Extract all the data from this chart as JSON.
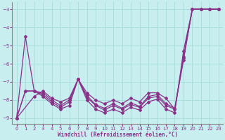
{
  "xlabel": "Windchill (Refroidissement éolien,°C)",
  "bg_color": "#c8eef0",
  "grid_color": "#aadddd",
  "line_color": "#883388",
  "xlim": [
    -0.5,
    23.5
  ],
  "ylim": [
    -9.3,
    -2.6
  ],
  "yticks": [
    -9,
    -8,
    -7,
    -6,
    -5,
    -4,
    -3
  ],
  "xticks": [
    0,
    1,
    2,
    3,
    4,
    5,
    6,
    7,
    8,
    9,
    10,
    11,
    12,
    13,
    14,
    15,
    16,
    17,
    18,
    19,
    20,
    21,
    22,
    23
  ],
  "series": [
    {
      "x": [
        0,
        1,
        2,
        3,
        4,
        5,
        6,
        7,
        8,
        9,
        10,
        11,
        12,
        13,
        14,
        15,
        16,
        17,
        18,
        19,
        20,
        21,
        22,
        23
      ],
      "y": [
        -9.0,
        -4.5,
        -7.5,
        -7.8,
        -8.2,
        -8.5,
        -8.3,
        -6.85,
        -8.0,
        -8.5,
        -8.7,
        -8.5,
        -8.7,
        -8.4,
        -8.55,
        -8.1,
        -7.95,
        -8.5,
        -8.7,
        -5.3,
        -3.0,
        -3.0,
        -3.0,
        -3.0
      ]
    },
    {
      "x": [
        0,
        1,
        2,
        3,
        4,
        5,
        6,
        7,
        8,
        9,
        10,
        11,
        12,
        13,
        14,
        15,
        16,
        17,
        18,
        19,
        20,
        21,
        22,
        23
      ],
      "y": [
        -9.0,
        -7.5,
        -7.5,
        -7.7,
        -8.1,
        -8.4,
        -8.1,
        -6.85,
        -7.85,
        -8.3,
        -8.55,
        -8.3,
        -8.5,
        -8.25,
        -8.4,
        -7.9,
        -7.8,
        -8.3,
        -8.5,
        -5.6,
        -3.0,
        -3.0,
        -3.0,
        -3.0
      ]
    },
    {
      "x": [
        0,
        1,
        2,
        3,
        4,
        5,
        6,
        7,
        8,
        9,
        10,
        11,
        12,
        13,
        14,
        15,
        16,
        17,
        18,
        19,
        20,
        21,
        22,
        23
      ],
      "y": [
        -9.0,
        -7.5,
        -7.5,
        -7.6,
        -8.0,
        -8.3,
        -8.0,
        -6.85,
        -7.75,
        -8.25,
        -8.45,
        -8.2,
        -8.45,
        -8.15,
        -8.35,
        -7.8,
        -7.7,
        -8.2,
        -8.45,
        -5.7,
        -3.0,
        -3.0,
        -3.0,
        -3.0
      ]
    },
    {
      "x": [
        0,
        2,
        3,
        4,
        5,
        6,
        7,
        8,
        9,
        10,
        11,
        12,
        13,
        14,
        15,
        16,
        17,
        18,
        19,
        20,
        21,
        22,
        23
      ],
      "y": [
        -9.0,
        -7.8,
        -7.5,
        -7.9,
        -8.1,
        -7.9,
        -6.85,
        -7.6,
        -8.0,
        -8.2,
        -8.0,
        -8.2,
        -7.9,
        -8.1,
        -7.6,
        -7.6,
        -7.9,
        -8.5,
        -5.8,
        -3.0,
        -3.0,
        -3.0,
        -3.0
      ]
    }
  ]
}
